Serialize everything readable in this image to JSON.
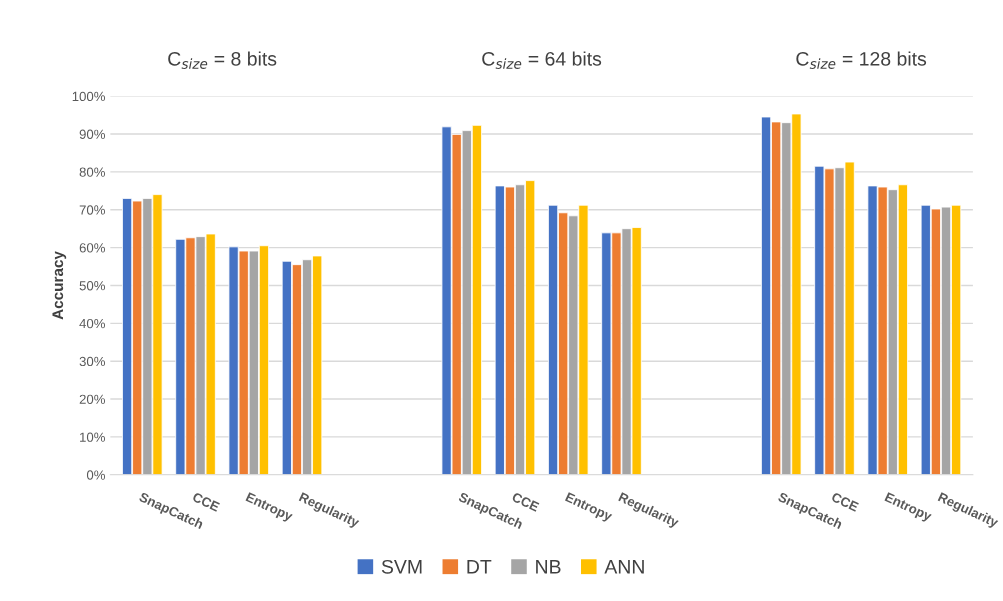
{
  "chart_data": {
    "type": "bar",
    "ylabel": "Accuracy",
    "annotations": [
      "C$_{size}$ = 8 bits",
      "C$_{size}$ = 64 bits",
      "C$_{size}$ = 128 bits"
    ],
    "categories": [
      "SnapCatch",
      "CCE",
      "Entropy",
      "Regularity",
      null,
      null,
      "SnapCatch",
      "CCE",
      "Entropy",
      "Regularity",
      null,
      null,
      "SnapCatch",
      "CCE",
      "Entropy",
      "Regularity"
    ],
    "series": [
      {
        "name": "SVM",
        "color": "#4472c4",
        "values": [
          73.0,
          62.2,
          60.2,
          56.4,
          null,
          null,
          91.9,
          76.3,
          71.2,
          63.9,
          null,
          null,
          94.5,
          81.5,
          76.3,
          71.2
        ]
      },
      {
        "name": "DT",
        "color": "#ed7d31",
        "values": [
          72.3,
          62.6,
          59.1,
          55.5,
          null,
          null,
          89.9,
          76.0,
          69.2,
          63.9,
          null,
          null,
          93.2,
          80.8,
          76.0,
          70.2
        ]
      },
      {
        "name": "NB",
        "color": "#a5a5a5",
        "values": [
          73.0,
          62.9,
          59.1,
          56.8,
          null,
          null,
          90.9,
          76.6,
          68.4,
          65.0,
          null,
          null,
          93.0,
          81.1,
          75.3,
          70.7
        ]
      },
      {
        "name": "ANN",
        "color": "#ffc000",
        "values": [
          74.0,
          63.6,
          60.5,
          57.8,
          null,
          null,
          92.3,
          77.7,
          71.2,
          65.3,
          null,
          null,
          95.3,
          82.6,
          76.6,
          71.2
        ]
      }
    ],
    "ylim": [
      0,
      100
    ],
    "yticks": [
      {
        "value": 0,
        "label": "0%"
      },
      {
        "value": 10,
        "label": "10%"
      },
      {
        "value": 20,
        "label": "20%"
      },
      {
        "value": 30,
        "label": "30%"
      },
      {
        "value": 40,
        "label": "40%"
      },
      {
        "value": 50,
        "label": "50%"
      },
      {
        "value": 60,
        "label": "60%"
      },
      {
        "value": 70,
        "label": "70%"
      },
      {
        "value": 80,
        "label": "80%"
      },
      {
        "value": 90,
        "label": "90%"
      },
      {
        "value": 100,
        "label": "100%"
      }
    ],
    "grid": "y",
    "legend": "bottom"
  }
}
